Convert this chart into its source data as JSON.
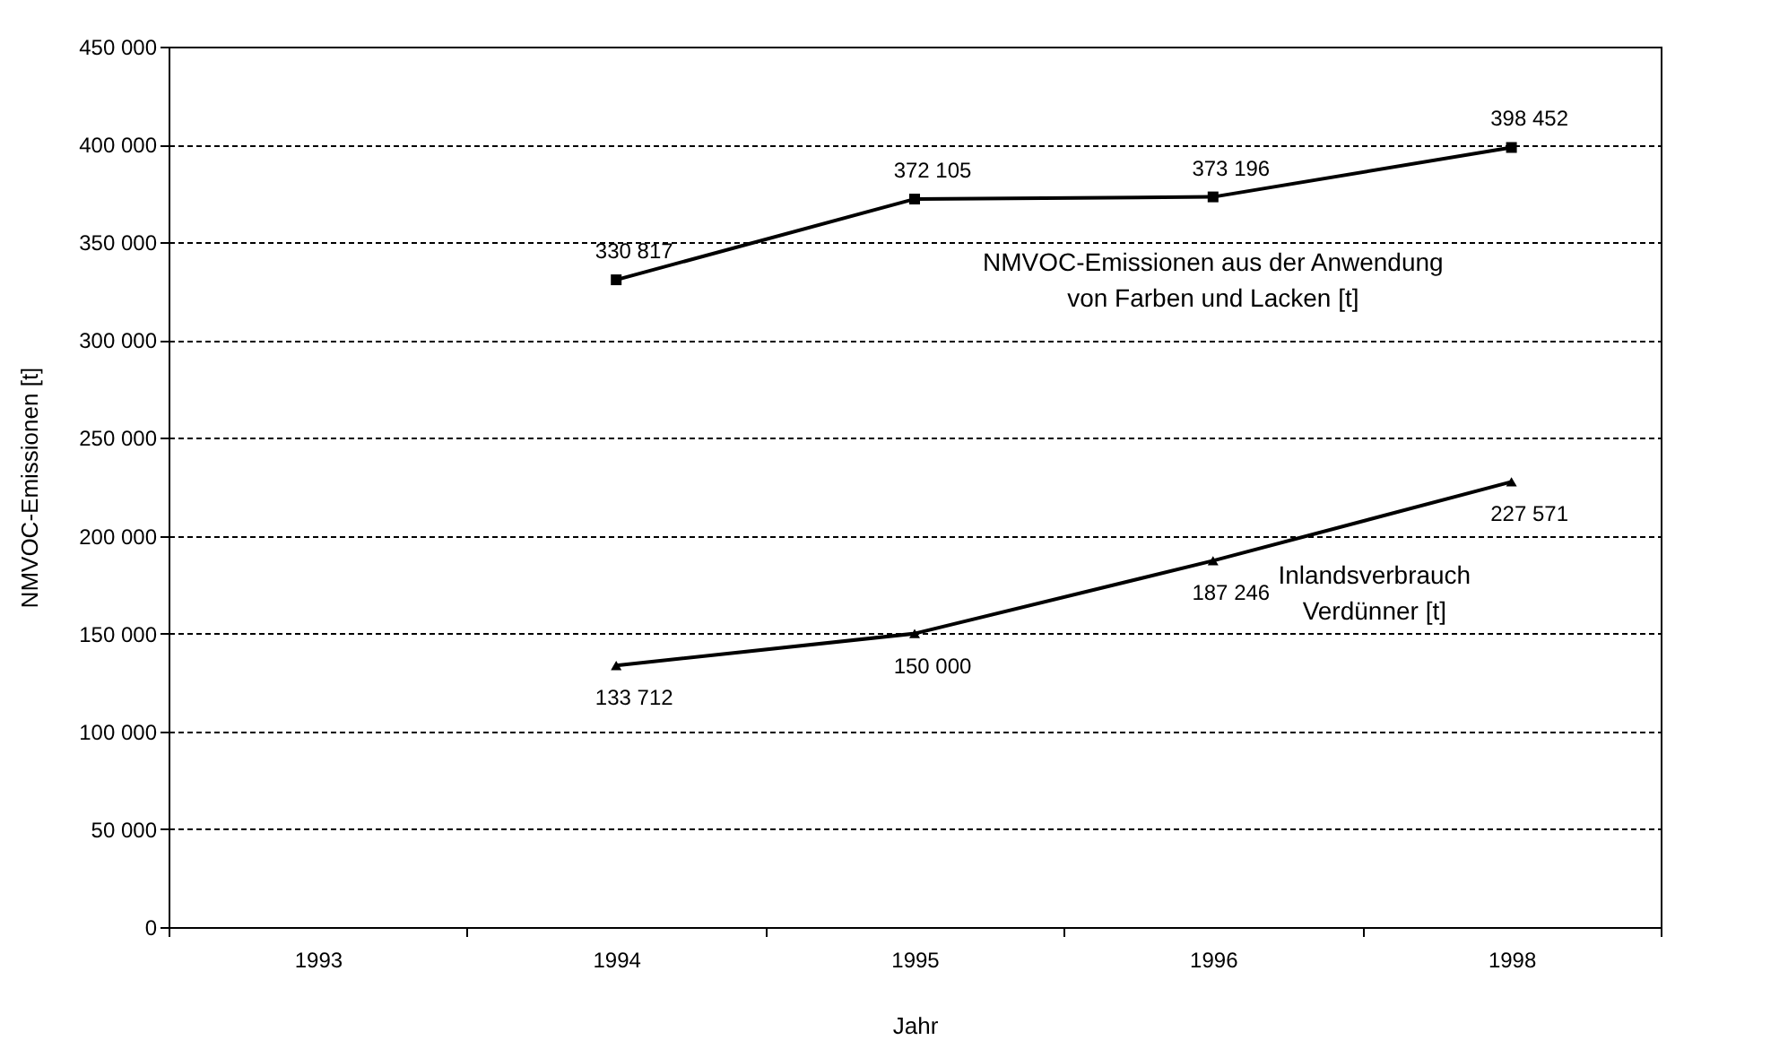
{
  "chart_data": {
    "type": "line",
    "xlabel": "Jahr",
    "ylabel": "NMVOC-Emissionen [t]",
    "categories": [
      "1993",
      "1994",
      "1995",
      "1996",
      "1998"
    ],
    "series": [
      {
        "name": "NMVOC-Emissionen aus der Anwendung von Farben und Lacken [t]",
        "color": "#000000",
        "marker": "square",
        "values": [
          null,
          330817,
          372105,
          373196,
          398452
        ]
      },
      {
        "name": "Inlandsverbrauch Verdünner [t]",
        "color": "#000000",
        "marker": "triangle",
        "values": [
          null,
          133712,
          150000,
          187246,
          227571
        ]
      }
    ],
    "ylim": [
      0,
      450000
    ],
    "yticks": [
      0,
      50000,
      100000,
      150000,
      200000,
      250000,
      300000,
      350000,
      400000,
      450000
    ],
    "grid": "y",
    "legend": false,
    "data_labels": true,
    "line_style": "solid"
  }
}
